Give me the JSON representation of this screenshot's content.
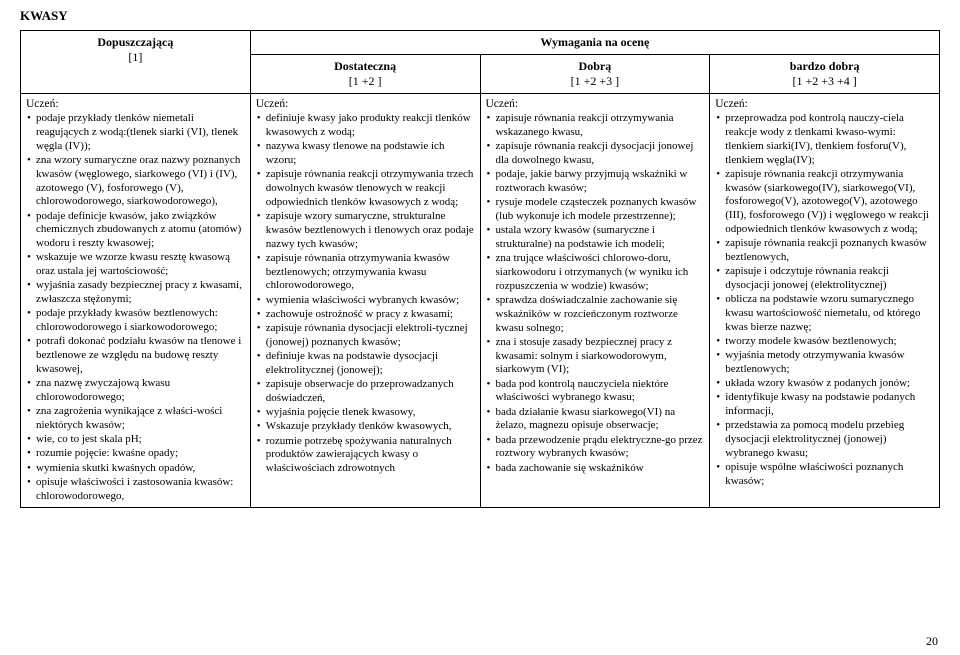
{
  "title": "KWASY",
  "superHeader": "Wymagania na ocenę",
  "columns": [
    {
      "label": "Dopuszczającą",
      "sub": "[1]"
    },
    {
      "label": "Dostateczną",
      "sub": "[1 +2 ]"
    },
    {
      "label": "Dobrą",
      "sub": "[1 +2 +3 ]"
    },
    {
      "label": "bardzo dobrą",
      "sub": "[1 +2 +3 +4 ]"
    }
  ],
  "uczen": "Uczeń:",
  "col1": [
    "podaje przykłady tlenków niemetali reagujących z wodą:(tlenek siarki (VI), tlenek węgla (IV));",
    "zna wzory sumaryczne oraz nazwy poznanych kwasów (węglowego, siarkowego (VI) i (IV), azotowego (V), fosforowego (V), chlorowodorowego, siarkowodorowego),",
    "podaje definicje kwasów, jako związków chemicznych zbudowanych z atomu (atomów) wodoru i reszty kwasowej;",
    "wskazuje we wzorze kwasu resztę kwasową oraz ustala jej wartościowość;",
    "wyjaśnia zasady bezpiecznej pracy z kwasami, zwłaszcza stężonymi;",
    "podaje przykłady kwasów beztlenowych: chlorowodorowego i siarkowodorowego;",
    "potrafi dokonać podziału kwasów na tlenowe i beztlenowe ze względu na budowę reszty kwasowej,",
    "zna nazwę zwyczajową kwasu chlorowodorowego;",
    "zna zagrożenia wynikające z właści-wości niektórych kwasów;",
    "wie, co to jest skala pH;",
    "rozumie pojęcie: kwaśne opady;",
    "wymienia skutki kwaśnych opadów,",
    "opisuje właściwości i zastosowania kwasów: chlorowodorowego,"
  ],
  "col2": [
    "definiuje kwasy jako produkty reakcji tlenków kwasowych z wodą;",
    "nazywa kwasy tlenowe na podstawie ich wzoru;",
    "zapisuje równania reakcji otrzymywania trzech dowolnych kwasów tlenowych w reakcji odpowiednich tlenków kwasowych z wodą;",
    "zapisuje wzory sumaryczne, strukturalne kwasów beztlenowych  i tlenowych oraz podaje nazwy tych kwasów;",
    "zapisuje równania otrzymywania kwasów beztlenowych; otrzymywania kwasu chlorowodorowego,",
    "wymienia właściwości wybranych kwasów;",
    "zachowuje ostrożność w pracy z kwasami;",
    "zapisuje równania dysocjacji elektroli-tycznej (jonowej) poznanych kwasów;",
    "definiuje kwas na podstawie dysocjacji elektrolitycznej (jonowej);",
    "zapisuje obserwacje do przeprowadzanych doświadczeń,",
    " wyjaśnia pojęcie tlenek kwasowy,",
    "Wskazuje przykłady tlenków kwasowych,",
    "rozumie potrzebę spożywania naturalnych produktów zawierających kwasy o właściwościach zdrowotnych"
  ],
  "col3": [
    "zapisuje równania reakcji otrzymywania wskazanego kwasu,",
    "zapisuje równania reakcji dysocjacji jonowej  dla dowolnego kwasu,",
    "podaje, jakie barwy przyjmują wskaźniki w roztworach kwasów;",
    "rysuje modele cząsteczek poznanych kwasów (lub wykonuje ich modele przestrzenne);",
    "ustala wzory kwasów (sumaryczne i strukturalne) na podstawie ich modeli;",
    "zna trujące właściwości chlorowo-doru, siarkowodoru i otrzymanych (w wyniku ich rozpuszczenia w wodzie) kwasów;",
    "sprawdza doświadczalnie zachowanie się wskaźników w rozcieńczonym roztworze kwasu solnego;",
    "zna i stosuje zasady bezpiecznej pracy z kwasami: solnym i siarkowodorowym, siarkowym (VI);",
    "bada pod kontrolą nauczyciela niektóre właściwości wybranego kwasu;",
    "bada działanie kwasu siarkowego(VI) na żelazo, magnezu   opisuje obserwacje;",
    "bada przewodzenie prądu elektryczne-go przez roztwory wybranych kwasów;",
    "bada zachowanie się wskaźników"
  ],
  "col4": [
    "przeprowadza pod kontrolą nauczy-ciela reakcje wody z tlenkami kwaso-wymi: tlenkiem siarki(IV), tlenkiem fosforu(V), tlenkiem węgla(IV);",
    "zapisuje równania reakcji otrzymywania kwasów (siarkowego(IV), siarkowego(VI), fosforowego(V), azotowego(V), azotowego (III), fosforowego (V)) i węglowego w reakcji odpowiednich tlenków kwasowych z wodą;",
    "zapisuje równania reakcji poznanych kwasów beztlenowych,",
    "zapisuje i odczytuje równania reakcji dysocjacji jonowej (elektrolitycznej)",
    "oblicza na podstawie wzoru sumarycznego kwasu wartościowość niemetalu, od którego kwas bierze nazwę;",
    "tworzy modele kwasów beztlenowych;",
    "wyjaśnia metody otrzymywania kwasów beztlenowych;",
    "układa wzory kwasów z podanych jonów;",
    "identyfikuje kwasy na podstawie podanych informacji,",
    "przedstawia za pomocą modelu przebieg dysocjacji elektrolitycznej (jonowej) wybranego kwasu;",
    "opisuje wspólne właściwości poznanych kwasów;"
  ],
  "pageNum": "20"
}
